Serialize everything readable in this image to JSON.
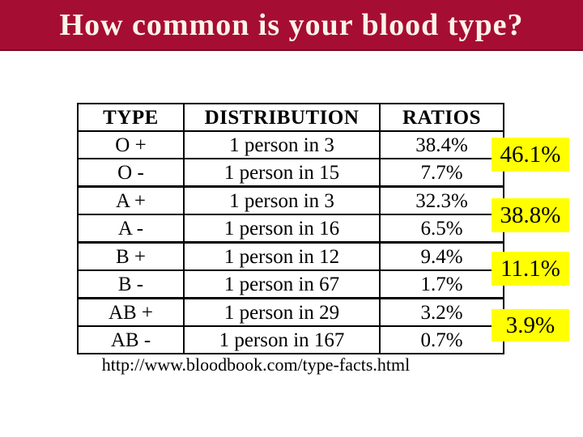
{
  "header": {
    "title": "How common is your blood type?",
    "bg_color": "#A60D33",
    "text_color": "#FBF3E9"
  },
  "table": {
    "columns": [
      "TYPE",
      "DISTRIBUTION",
      "RATIOS"
    ],
    "rows": [
      {
        "type": "O +",
        "distribution": "1 person in 3",
        "ratio": "38.4%"
      },
      {
        "type": "O -",
        "distribution": "1 person in 15",
        "ratio": "7.7%"
      },
      {
        "type": "A +",
        "distribution": "1 person in 3",
        "ratio": "32.3%"
      },
      {
        "type": "A -",
        "distribution": "1 person in 16",
        "ratio": "6.5%"
      },
      {
        "type": "B +",
        "distribution": "1 person in 12",
        "ratio": "9.4%"
      },
      {
        "type": "B -",
        "distribution": "1 person in 67",
        "ratio": "1.7%"
      },
      {
        "type": "AB +",
        "distribution": "1 person in 29",
        "ratio": "3.2%"
      },
      {
        "type": "AB -",
        "distribution": "1 person in 167",
        "ratio": "0.7%"
      }
    ]
  },
  "group_totals": [
    {
      "group": "O",
      "label": "46.1%"
    },
    {
      "group": "A",
      "label": "38.8%"
    },
    {
      "group": "B",
      "label": "11.1%"
    },
    {
      "group": "AB",
      "label": "3.9%"
    }
  ],
  "footer": {
    "source_url": "http://www.bloodbook.com/type-facts.html"
  },
  "colors": {
    "highlight": "#FFFF00",
    "table_border": "#000000"
  }
}
